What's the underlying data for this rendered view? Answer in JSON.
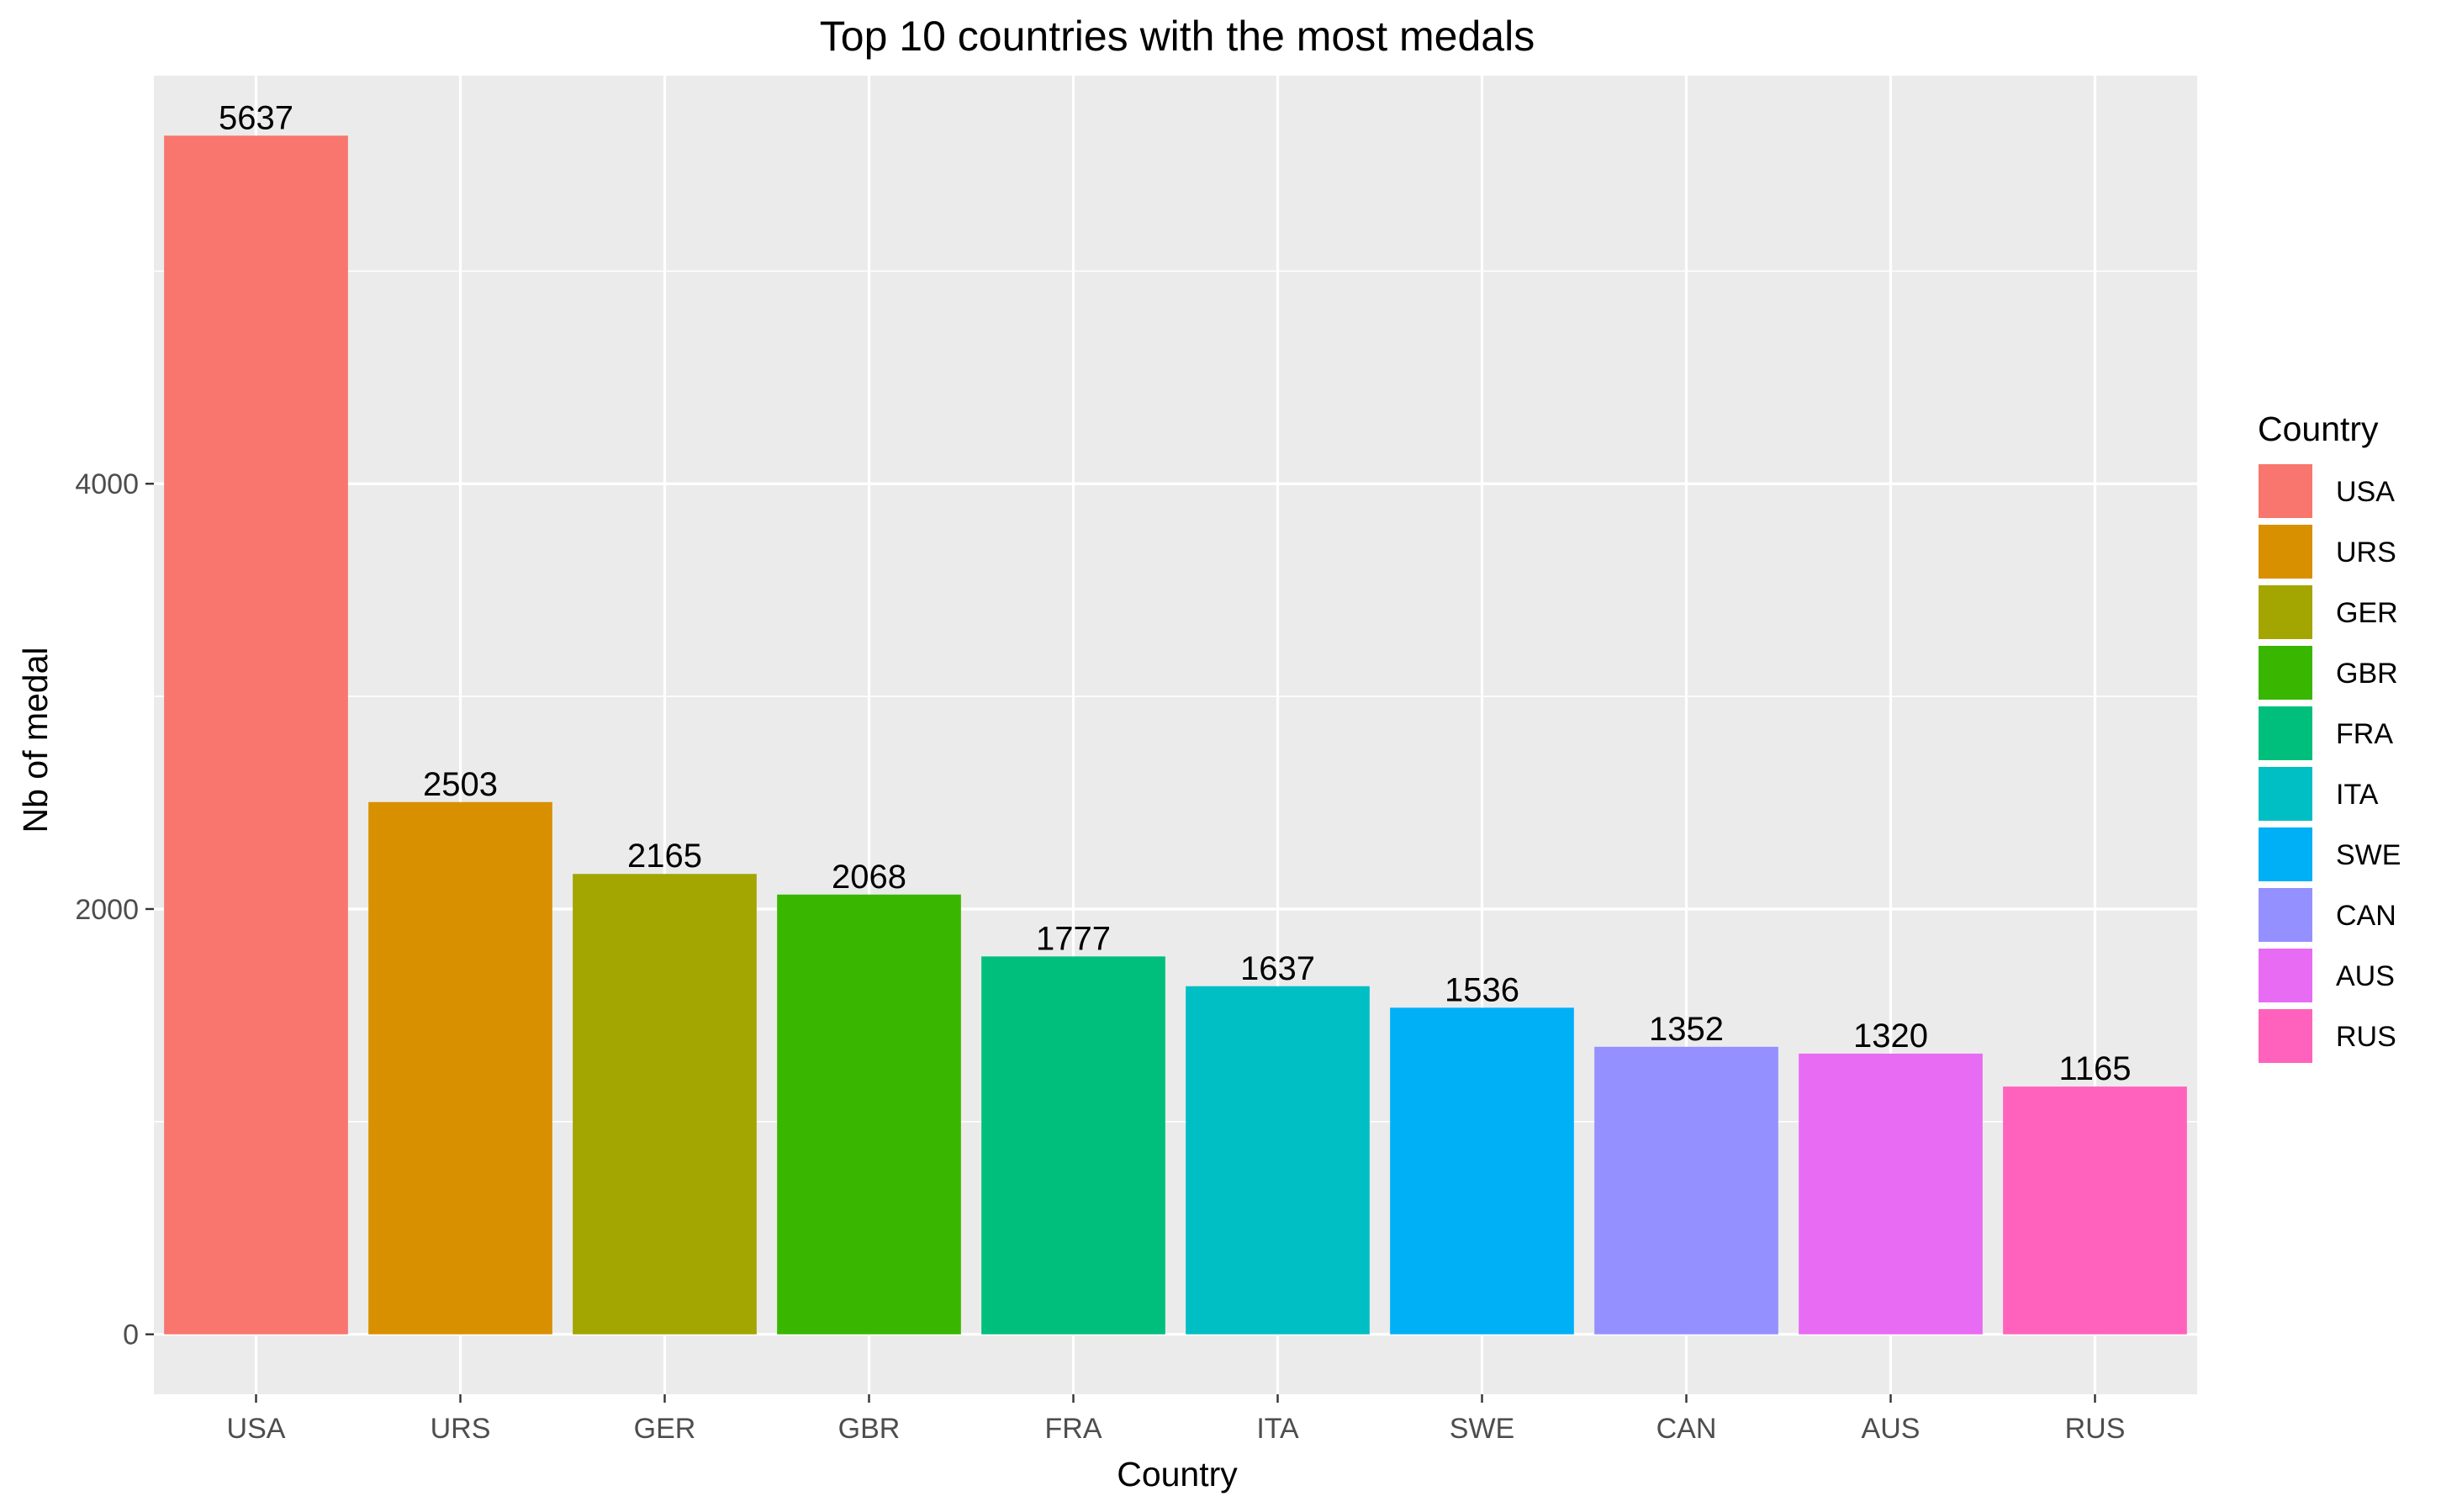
{
  "chart_data": {
    "type": "bar",
    "title": "Top 10 countries with the most medals",
    "xlabel": "Country",
    "ylabel": "Nb of medal",
    "categories": [
      "USA",
      "URS",
      "GER",
      "GBR",
      "FRA",
      "ITA",
      "SWE",
      "CAN",
      "AUS",
      "RUS"
    ],
    "values": [
      5637,
      2503,
      2165,
      2068,
      1777,
      1637,
      1536,
      1352,
      1320,
      1165
    ],
    "colors": [
      "#F8766D",
      "#D89000",
      "#A3A500",
      "#39B600",
      "#00BF7D",
      "#00BFC4",
      "#00B0F6",
      "#9590FF",
      "#E76BF3",
      "#FF62BC"
    ],
    "ylim": [
      -282,
      5919
    ],
    "yticks": [
      0,
      2000,
      4000
    ],
    "yticks_labels": [
      "0",
      "2000",
      "4000"
    ],
    "grid": true,
    "panel_background": "#EBEBEB",
    "grid_color": "#FFFFFF",
    "legend": {
      "title": "Country",
      "position": "right",
      "items": [
        "USA",
        "URS",
        "GER",
        "GBR",
        "FRA",
        "ITA",
        "SWE",
        "CAN",
        "AUS",
        "RUS"
      ]
    }
  }
}
